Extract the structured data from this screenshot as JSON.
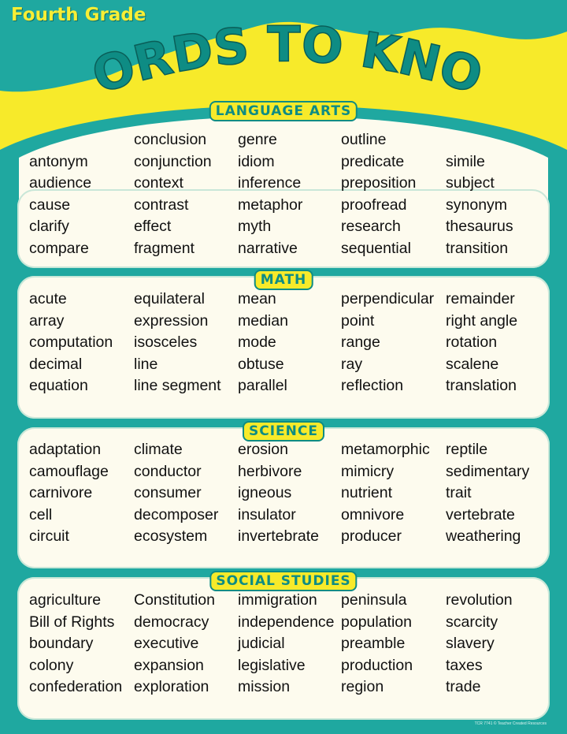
{
  "header": {
    "grade": "Fourth Grade",
    "title": "WORDS TO KNOW"
  },
  "colors": {
    "teal": "#1fa8a0",
    "yellow": "#f7ea2a",
    "panel": "#fdfbee",
    "title_teal": "#0e8c84"
  },
  "sections": [
    {
      "title": "Language Arts",
      "columns": [
        [
          "",
          "antonym",
          "audience",
          "cause",
          "clarify",
          "compare"
        ],
        [
          "conclusion",
          "conjunction",
          "context",
          "contrast",
          "effect",
          "fragment"
        ],
        [
          "genre",
          "idiom",
          "inference",
          "metaphor",
          "myth",
          "narrative"
        ],
        [
          "outline",
          "predicate",
          "preposition",
          "proofread",
          "research",
          "sequential"
        ],
        [
          "",
          "simile",
          "subject",
          "synonym",
          "thesaurus",
          "transition"
        ]
      ]
    },
    {
      "title": "Math",
      "columns": [
        [
          "acute",
          "array",
          "computation",
          "decimal",
          "equation"
        ],
        [
          "equilateral",
          "expression",
          "isosceles",
          "line",
          "line segment"
        ],
        [
          "mean",
          "median",
          "mode",
          "obtuse",
          "parallel"
        ],
        [
          "perpendicular",
          "point",
          "range",
          "ray",
          "reflection"
        ],
        [
          "remainder",
          "right angle",
          "rotation",
          "scalene",
          "translation"
        ]
      ]
    },
    {
      "title": "Science",
      "columns": [
        [
          "adaptation",
          "camouflage",
          "carnivore",
          "cell",
          "circuit"
        ],
        [
          "climate",
          "conductor",
          "consumer",
          "decomposer",
          "ecosystem"
        ],
        [
          "erosion",
          "herbivore",
          "igneous",
          "insulator",
          "invertebrate"
        ],
        [
          "metamorphic",
          "mimicry",
          "nutrient",
          "omnivore",
          "producer"
        ],
        [
          "reptile",
          "sedimentary",
          "trait",
          "vertebrate",
          "weathering"
        ]
      ]
    },
    {
      "title": "Social Studies",
      "columns": [
        [
          "agriculture",
          "Bill of Rights",
          "boundary",
          "colony",
          "confederation"
        ],
        [
          "Constitution",
          "democracy",
          "executive",
          "expansion",
          "exploration"
        ],
        [
          "immigration",
          "independence",
          "judicial",
          "legislative",
          "mission"
        ],
        [
          "peninsula",
          "population",
          "preamble",
          "production",
          "region"
        ],
        [
          "revolution",
          "scarcity",
          "slavery",
          "taxes",
          "trade"
        ]
      ]
    }
  ],
  "footer": "TCR 7741 © Teacher Created Resources"
}
